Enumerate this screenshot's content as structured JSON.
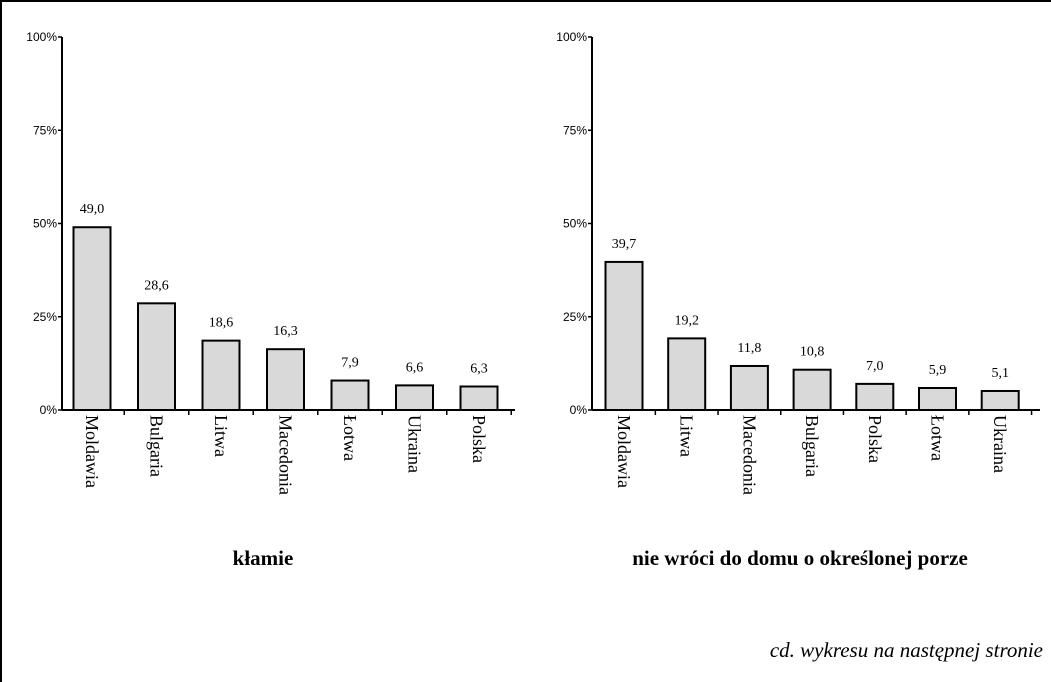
{
  "chart_data": [
    {
      "type": "bar",
      "title": "kłamie",
      "categories": [
        "Moldawia",
        "Bulgaria",
        "Litwa",
        "Macedonia",
        "Łotwa",
        "Ukraina",
        "Polska"
      ],
      "values": [
        49.0,
        28.6,
        18.6,
        16.3,
        7.9,
        6.6,
        6.3
      ],
      "value_labels": [
        "49,0",
        "28,6",
        "18,6",
        "16,3",
        "7,9",
        "6,6",
        "6,3"
      ],
      "ylim": [
        0,
        100
      ],
      "yticks": [
        "0%",
        "25%",
        "50%",
        "75%",
        "100%"
      ],
      "bar_color": "#d9d9d9",
      "grid": false
    },
    {
      "type": "bar",
      "title": "nie wróci do domu o określonej porze",
      "categories": [
        "Moldawia",
        "Litwa",
        "Macedonia",
        "Bulgaria",
        "Polska",
        "Łotwa",
        "Ukraina"
      ],
      "values": [
        39.7,
        19.2,
        11.8,
        10.8,
        7.0,
        5.9,
        5.1
      ],
      "value_labels": [
        "39,7",
        "19,2",
        "11,8",
        "10,8",
        "7,0",
        "5,9",
        "5,1"
      ],
      "ylim": [
        0,
        100
      ],
      "yticks": [
        "0%",
        "25%",
        "50%",
        "75%",
        "100%"
      ],
      "bar_color": "#d9d9d9",
      "grid": false
    }
  ],
  "footnote": "cd. wykresu na następnej stronie"
}
